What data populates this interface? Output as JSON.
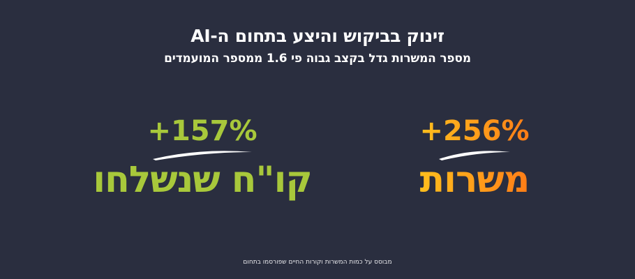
{
  "header": {
    "title": "זינוק בביקוש והיצע בתחום ה-AI",
    "subtitle": "מספר המשרות גדל בקצב גבוה פי 1.6 ממספר המועמדים"
  },
  "stats": {
    "jobs": {
      "percent": "+256%",
      "label": "משרות",
      "change_percent": 256,
      "gradient_colors": [
        "#ffcf1f",
        "#ff9a1a",
        "#ff6a14"
      ]
    },
    "resumes": {
      "percent": "+157%",
      "label": "קו\"ח שנשלחו",
      "change_percent": 157,
      "color": "#a8c83b"
    }
  },
  "footnote": "מבוסס על כמות המשרות וקורות החיים שפורסמו בתחום",
  "colors": {
    "background": "#2a2e3f",
    "text": "#ffffff"
  }
}
